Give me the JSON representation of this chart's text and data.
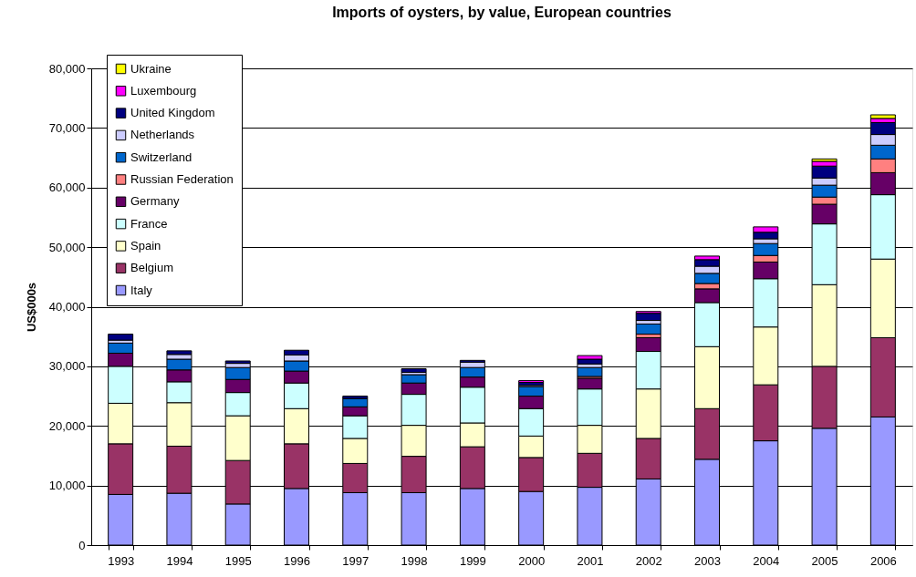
{
  "chart_data": {
    "type": "bar",
    "title": "Imports of oysters, by value, European countries",
    "ylabel": "US$000s",
    "categories": [
      "1993",
      "1994",
      "1995",
      "1996",
      "1997",
      "1998",
      "1999",
      "2000",
      "2001",
      "2002",
      "2003",
      "2004",
      "2005",
      "2006"
    ],
    "stacked": true,
    "ylim": [
      0,
      80000
    ],
    "yticks": [
      0,
      {
        "value": 10000,
        "label": "10,000"
      },
      {
        "value": 20000,
        "label": "20,000"
      },
      {
        "value": 30000,
        "label": "30,000"
      },
      {
        "value": 40000,
        "label": "40,000"
      },
      {
        "value": 50000,
        "label": "50,000"
      },
      {
        "value": 60000,
        "label": "60,000"
      },
      {
        "value": 70000,
        "label": "70,000"
      },
      {
        "value": 80000,
        "label": "80,000"
      }
    ],
    "grid": "y",
    "legend": "top left",
    "series": [
      {
        "name": "Italy",
        "color": "#9999ff",
        "values": [
          8500,
          8700,
          6900,
          9500,
          8800,
          8800,
          9500,
          9000,
          9700,
          11100,
          14400,
          17500,
          19600,
          21500
        ]
      },
      {
        "name": "Belgium",
        "color": "#993366",
        "values": [
          8500,
          7900,
          7300,
          7500,
          4900,
          6100,
          7000,
          5700,
          5700,
          6800,
          8500,
          9400,
          10400,
          13300
        ]
      },
      {
        "name": "Spain",
        "color": "#ffffcc",
        "values": [
          6800,
          7300,
          7500,
          5900,
          4200,
          5200,
          4000,
          3600,
          4700,
          8300,
          10400,
          9700,
          13700,
          13200
        ]
      },
      {
        "name": "France",
        "color": "#ccffff",
        "values": [
          6200,
          3500,
          3900,
          4300,
          3800,
          5200,
          6000,
          4600,
          6100,
          6300,
          7400,
          8100,
          10200,
          10800
        ]
      },
      {
        "name": "Germany",
        "color": "#660066",
        "values": [
          2200,
          2000,
          2200,
          2000,
          1500,
          1900,
          1700,
          2100,
          1800,
          2300,
          2300,
          2800,
          3300,
          3700
        ]
      },
      {
        "name": "Russian Federation",
        "color": "#ff8080",
        "values": [
          null,
          null,
          null,
          null,
          null,
          null,
          null,
          null,
          300,
          600,
          900,
          1100,
          1200,
          2300
        ]
      },
      {
        "name": "Switzerland",
        "color": "#0066cc",
        "values": [
          1700,
          1800,
          2000,
          1700,
          1400,
          1400,
          1600,
          1600,
          1500,
          1700,
          1700,
          2000,
          2000,
          2300
        ]
      },
      {
        "name": "Netherlands",
        "color": "#ccccff",
        "values": [
          500,
          800,
          700,
          1000,
          null,
          400,
          900,
          200,
          600,
          600,
          1200,
          800,
          1200,
          1800
        ]
      },
      {
        "name": "United Kingdom",
        "color": "#000080",
        "values": [
          1000,
          600,
          400,
          800,
          400,
          600,
          300,
          500,
          800,
          1200,
          1100,
          1100,
          2000,
          2000
        ]
      },
      {
        "name": "Luxembourg",
        "color": "#ff00ff",
        "values": [
          null,
          null,
          null,
          null,
          null,
          null,
          null,
          300,
          600,
          300,
          600,
          900,
          800,
          700
        ]
      },
      {
        "name": "Ukraine",
        "color": "#ffff00",
        "values": [
          null,
          null,
          null,
          null,
          null,
          null,
          null,
          null,
          null,
          null,
          null,
          null,
          400,
          600
        ]
      }
    ]
  }
}
